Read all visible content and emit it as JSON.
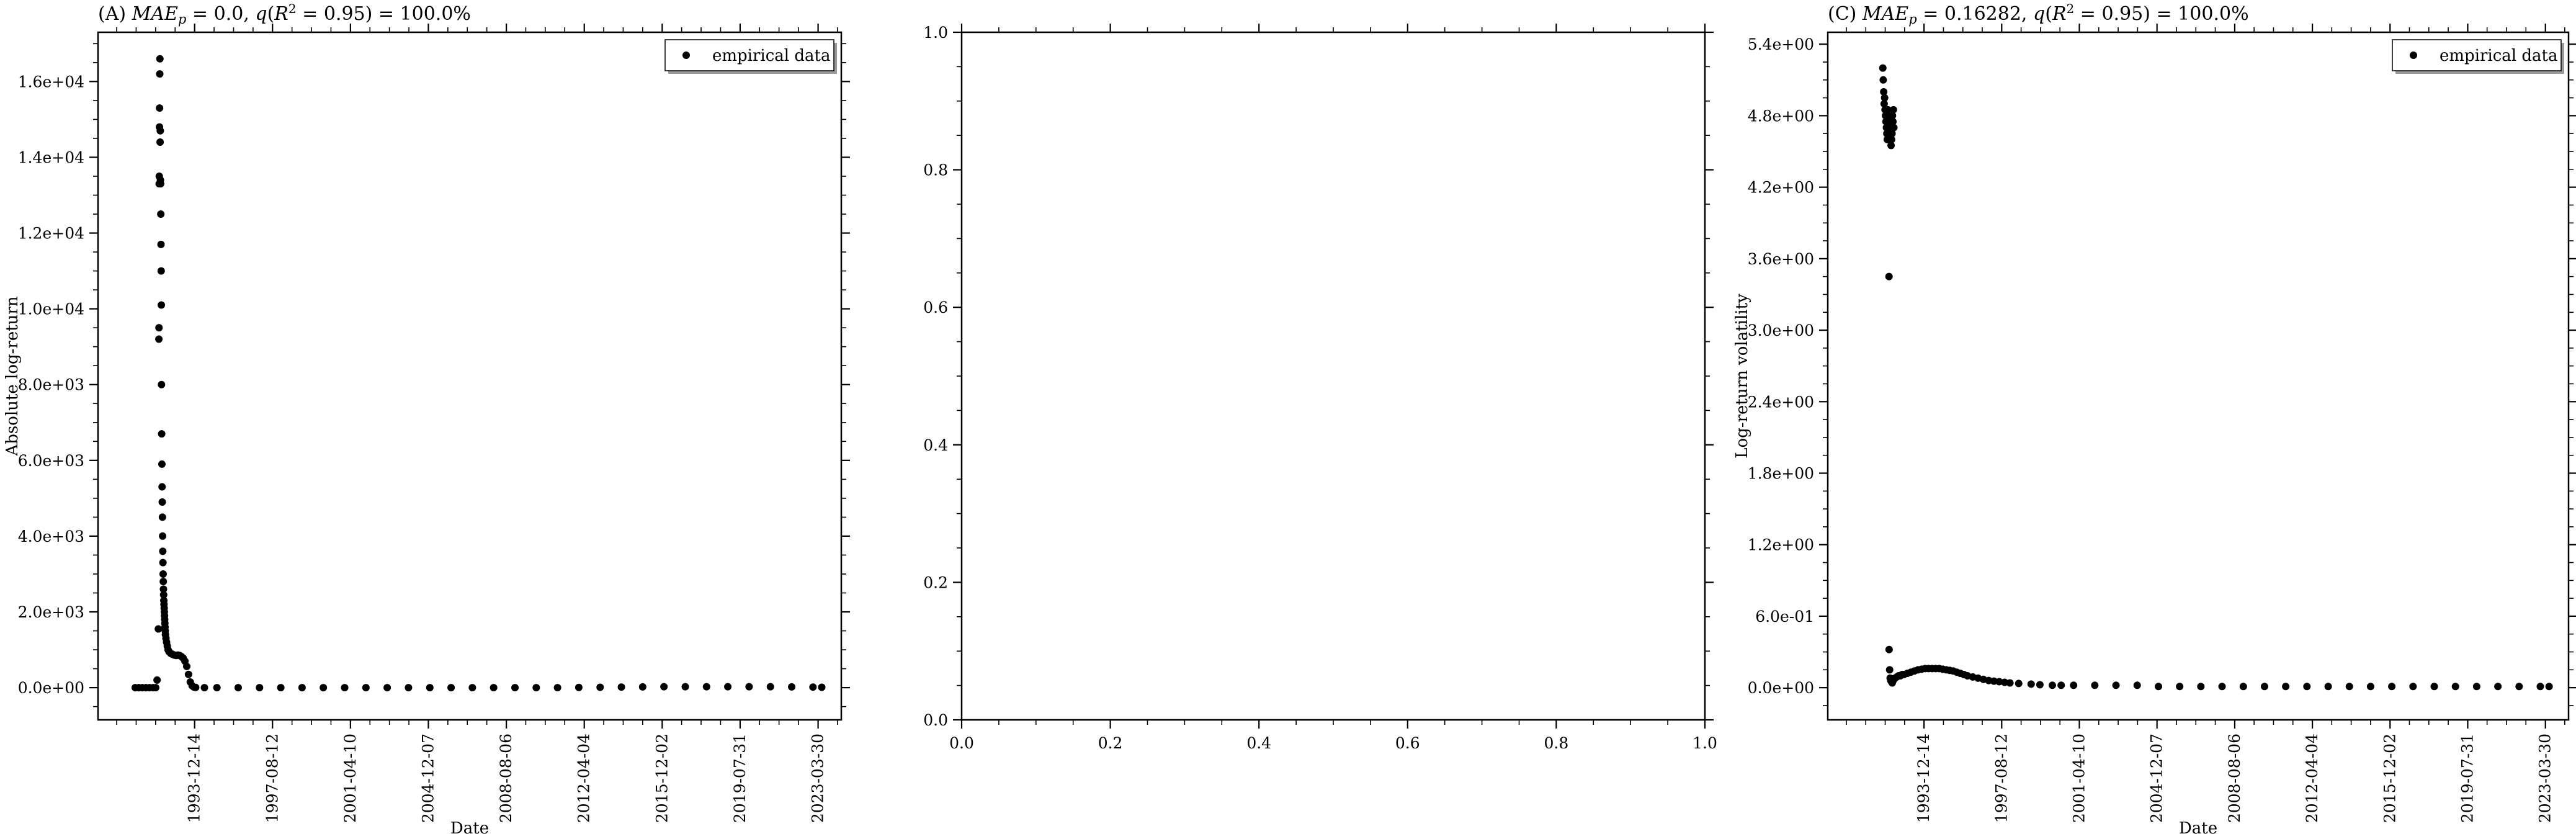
{
  "chart_data": [
    {
      "id": "A",
      "type": "scatter",
      "title": "(A) MAE_p = 0.0, q(R² = 0.95) = 100.0%",
      "title_parts": {
        "prefix": "(A) ",
        "mae": "MAE",
        "mae_sub": "p",
        "mae_value": " = 0.0, ",
        "q": "q",
        "r": "R",
        "r_sup": "2",
        "q_value": " = 0.95) = 100.0%"
      },
      "xlabel": "Date",
      "ylabel": "Absolute log-return",
      "xlim": [
        "1989-06-01",
        "2024-05-01"
      ],
      "ylim": [
        -850,
        17300
      ],
      "x_ticks": [
        "1993-12-14",
        "1997-08-12",
        "2001-04-10",
        "2004-12-07",
        "2008-08-06",
        "2012-04-04",
        "2015-12-02",
        "2019-07-31",
        "2023-03-30"
      ],
      "y_ticks": [
        0,
        2000,
        4000,
        6000,
        8000,
        10000,
        12000,
        14000,
        16000
      ],
      "y_tick_labels": [
        "0.0e+00",
        "2.0e+03",
        "4.0e+03",
        "6.0e+03",
        "8.0e+03",
        "1.0e+04",
        "1.2e+04",
        "1.4e+04",
        "1.6e+04"
      ],
      "legend": {
        "label": "empirical data",
        "position": "upper right"
      },
      "grid": false,
      "series": [
        {
          "name": "empirical data",
          "points": [
            [
              "1991-03-01",
              0
            ],
            [
              "1991-05-01",
              0
            ],
            [
              "1991-07-01",
              0
            ],
            [
              "1991-09-01",
              0
            ],
            [
              "1991-11-01",
              0
            ],
            [
              "1992-01-01",
              0
            ],
            [
              "1992-02-15",
              0
            ],
            [
              "1992-03-10",
              200
            ],
            [
              "1992-04-01",
              1550
            ],
            [
              "1992-04-10",
              9200
            ],
            [
              "1992-04-12",
              9500
            ],
            [
              "1992-04-15",
              13300
            ],
            [
              "1992-04-17",
              13500
            ],
            [
              "1992-04-20",
              14800
            ],
            [
              "1992-04-22",
              15300
            ],
            [
              "1992-04-25",
              16200
            ],
            [
              "1992-04-28",
              16600
            ],
            [
              "1992-05-01",
              14400
            ],
            [
              "1992-05-04",
              14700
            ],
            [
              "1992-05-07",
              13400
            ],
            [
              "1992-05-10",
              13300
            ],
            [
              "1992-05-13",
              12500
            ],
            [
              "1992-05-16",
              11700
            ],
            [
              "1992-05-19",
              11000
            ],
            [
              "1992-05-22",
              10100
            ],
            [
              "1992-05-25",
              8000
            ],
            [
              "1992-05-28",
              6700
            ],
            [
              "1992-06-01",
              5900
            ],
            [
              "1992-06-04",
              5300
            ],
            [
              "1992-06-07",
              4900
            ],
            [
              "1992-06-10",
              4500
            ],
            [
              "1992-06-13",
              4000
            ],
            [
              "1992-06-16",
              3600
            ],
            [
              "1992-06-19",
              3300
            ],
            [
              "1992-06-22",
              3000
            ],
            [
              "1992-06-25",
              2800
            ],
            [
              "1992-06-28",
              2600
            ],
            [
              "1992-07-01",
              2450
            ],
            [
              "1992-07-04",
              2300
            ],
            [
              "1992-07-07",
              2200
            ],
            [
              "1992-07-10",
              2100
            ],
            [
              "1992-07-13",
              2000
            ],
            [
              "1992-07-16",
              1900
            ],
            [
              "1992-07-19",
              1800
            ],
            [
              "1992-07-22",
              1700
            ],
            [
              "1992-07-25",
              1600
            ],
            [
              "1992-07-28",
              1500
            ],
            [
              "1992-08-01",
              1400
            ],
            [
              "1992-08-10",
              1300
            ],
            [
              "1992-08-20",
              1200
            ],
            [
              "1992-09-01",
              1100
            ],
            [
              "1992-09-15",
              1000
            ],
            [
              "1992-10-01",
              950
            ],
            [
              "1992-11-01",
              900
            ],
            [
              "1992-12-01",
              880
            ],
            [
              "1993-01-01",
              860
            ],
            [
              "1993-02-01",
              850
            ],
            [
              "1993-03-01",
              860
            ],
            [
              "1993-04-01",
              850
            ],
            [
              "1993-05-01",
              820
            ],
            [
              "1993-06-01",
              780
            ],
            [
              "1993-07-01",
              700
            ],
            [
              "1993-08-01",
              560
            ],
            [
              "1993-09-01",
              350
            ],
            [
              "1993-10-01",
              150
            ],
            [
              "1993-11-01",
              50
            ],
            [
              "1993-12-01",
              15
            ],
            [
              "1994-01-01",
              5
            ],
            [
              "1994-06-01",
              0
            ],
            [
              "1995-01-01",
              0
            ],
            [
              "1996-01-01",
              0
            ],
            [
              "1997-01-01",
              0
            ],
            [
              "1998-01-01",
              0
            ],
            [
              "1999-01-01",
              0
            ],
            [
              "2000-01-01",
              0
            ],
            [
              "2001-01-01",
              0
            ],
            [
              "2002-01-01",
              0
            ],
            [
              "2003-01-01",
              0
            ],
            [
              "2004-01-01",
              0
            ],
            [
              "2005-01-01",
              0
            ],
            [
              "2006-01-01",
              0
            ],
            [
              "2007-01-01",
              0
            ],
            [
              "2008-01-01",
              0
            ],
            [
              "2009-01-01",
              0
            ],
            [
              "2010-01-01",
              0
            ],
            [
              "2011-01-01",
              0
            ],
            [
              "2012-01-01",
              5
            ],
            [
              "2013-01-01",
              10
            ],
            [
              "2014-01-01",
              15
            ],
            [
              "2015-01-01",
              20
            ],
            [
              "2016-01-01",
              25
            ],
            [
              "2017-01-01",
              25
            ],
            [
              "2018-01-01",
              25
            ],
            [
              "2019-01-01",
              25
            ],
            [
              "2020-01-01",
              25
            ],
            [
              "2021-01-01",
              25
            ],
            [
              "2022-01-01",
              20
            ],
            [
              "2023-01-01",
              15
            ],
            [
              "2023-06-01",
              10
            ]
          ]
        }
      ]
    },
    {
      "id": "B",
      "type": "scatter",
      "title": "",
      "xlim": [
        0,
        1
      ],
      "ylim": [
        0,
        1
      ],
      "x_ticks": [
        0,
        0.2,
        0.4,
        0.6,
        0.8,
        1
      ],
      "x_tick_labels": [
        "0.0",
        "0.2",
        "0.4",
        "0.6",
        "0.8",
        "1.0"
      ],
      "y_ticks": [
        0,
        0.2,
        0.4,
        0.6,
        0.8,
        1
      ],
      "y_tick_labels": [
        "0.0",
        "0.2",
        "0.4",
        "0.6",
        "0.8",
        "1.0"
      ],
      "grid": false,
      "series": []
    },
    {
      "id": "C",
      "type": "scatter",
      "title": "(C) MAE_p = 0.16282, q(R² = 0.95) = 100.0%",
      "title_parts": {
        "prefix": "(C) ",
        "mae": "MAE",
        "mae_sub": "p",
        "mae_value": " = 0.16282, ",
        "q": "q",
        "r": "R",
        "r_sup": "2",
        "q_value": " = 0.95) = 100.0%"
      },
      "xlabel": "Date",
      "ylabel": "Log-return volatility",
      "xlim": [
        "1989-06-01",
        "2024-05-01"
      ],
      "ylim": [
        -0.27,
        5.5
      ],
      "x_ticks": [
        "1993-12-14",
        "1997-08-12",
        "2001-04-10",
        "2004-12-07",
        "2008-08-06",
        "2012-04-04",
        "2015-12-02",
        "2019-07-31",
        "2023-03-30"
      ],
      "y_ticks": [
        0,
        0.6,
        1.2,
        1.8,
        2.4,
        3.0,
        3.6,
        4.2,
        4.8,
        5.4
      ],
      "y_tick_labels": [
        "0.0e+00",
        "6.0e-01",
        "1.2e+00",
        "1.8e+00",
        "2.4e+00",
        "3.0e+00",
        "3.6e+00",
        "4.2e+00",
        "4.8e+00",
        "5.4e+00"
      ],
      "legend": {
        "label": "empirical data",
        "position": "upper right"
      },
      "grid": false,
      "series": [
        {
          "name": "empirical data",
          "points": [
            [
              "1992-01-05",
              5.2
            ],
            [
              "1992-01-12",
              5.1
            ],
            [
              "1992-01-20",
              5.0
            ],
            [
              "1992-01-28",
              4.9
            ],
            [
              "1992-02-05",
              4.95
            ],
            [
              "1992-02-12",
              4.85
            ],
            [
              "1992-02-20",
              4.8
            ],
            [
              "1992-02-28",
              4.75
            ],
            [
              "1992-03-07",
              4.7
            ],
            [
              "1992-03-14",
              4.65
            ],
            [
              "1992-03-22",
              4.6
            ],
            [
              "1992-03-30",
              4.85
            ],
            [
              "1992-04-08",
              4.8
            ],
            [
              "1992-04-16",
              4.75
            ],
            [
              "1992-04-24",
              4.7
            ],
            [
              "1992-05-02",
              4.65
            ],
            [
              "1992-05-10",
              4.6
            ],
            [
              "1992-05-18",
              4.7
            ],
            [
              "1992-05-26",
              4.55
            ],
            [
              "1992-06-03",
              4.6
            ],
            [
              "1992-06-11",
              4.65
            ],
            [
              "1992-06-19",
              4.8
            ],
            [
              "1992-06-27",
              4.75
            ],
            [
              "1992-07-05",
              4.85
            ],
            [
              "1992-07-13",
              4.7
            ],
            [
              "1992-04-20",
              3.45
            ],
            [
              "1992-04-22",
              0.32
            ],
            [
              "1992-05-01",
              0.15
            ],
            [
              "1992-05-10",
              0.08
            ],
            [
              "1992-05-20",
              0.06
            ],
            [
              "1992-06-01",
              0.05
            ],
            [
              "1992-06-15",
              0.04
            ],
            [
              "1992-07-01",
              0.06
            ],
            [
              "1992-08-01",
              0.08
            ],
            [
              "1992-09-01",
              0.09
            ],
            [
              "1992-10-01",
              0.1
            ],
            [
              "1992-11-01",
              0.1
            ],
            [
              "1992-12-01",
              0.11
            ],
            [
              "1993-01-01",
              0.11
            ],
            [
              "1993-03-01",
              0.12
            ],
            [
              "1993-05-01",
              0.13
            ],
            [
              "1993-07-01",
              0.14
            ],
            [
              "1993-09-01",
              0.15
            ],
            [
              "1993-11-01",
              0.155
            ],
            [
              "1994-01-01",
              0.16
            ],
            [
              "1994-03-01",
              0.16
            ],
            [
              "1994-05-01",
              0.16
            ],
            [
              "1994-07-01",
              0.16
            ],
            [
              "1994-09-01",
              0.16
            ],
            [
              "1994-11-01",
              0.155
            ],
            [
              "1995-01-01",
              0.15
            ],
            [
              "1995-03-01",
              0.145
            ],
            [
              "1995-05-01",
              0.14
            ],
            [
              "1995-07-01",
              0.13
            ],
            [
              "1995-09-01",
              0.12
            ],
            [
              "1995-11-01",
              0.11
            ],
            [
              "1996-01-01",
              0.1
            ],
            [
              "1996-04-01",
              0.09
            ],
            [
              "1996-07-01",
              0.08
            ],
            [
              "1996-10-01",
              0.07
            ],
            [
              "1997-01-01",
              0.06
            ],
            [
              "1997-04-01",
              0.055
            ],
            [
              "1997-07-01",
              0.05
            ],
            [
              "1997-10-01",
              0.045
            ],
            [
              "1998-01-01",
              0.04
            ],
            [
              "1998-06-01",
              0.035
            ],
            [
              "1999-01-01",
              0.03
            ],
            [
              "1999-06-01",
              0.025
            ],
            [
              "2000-01-01",
              0.02
            ],
            [
              "2000-06-01",
              0.02
            ],
            [
              "2001-01-01",
              0.02
            ],
            [
              "2002-01-01",
              0.02
            ],
            [
              "2003-01-01",
              0.02
            ],
            [
              "2004-01-01",
              0.02
            ],
            [
              "2005-01-01",
              0.01
            ],
            [
              "2006-01-01",
              0.01
            ],
            [
              "2007-01-01",
              0.01
            ],
            [
              "2008-01-01",
              0.01
            ],
            [
              "2009-01-01",
              0.01
            ],
            [
              "2010-01-01",
              0.01
            ],
            [
              "2011-01-01",
              0.01
            ],
            [
              "2012-01-01",
              0.01
            ],
            [
              "2013-01-01",
              0.01
            ],
            [
              "2014-01-01",
              0.01
            ],
            [
              "2015-01-01",
              0.01
            ],
            [
              "2016-01-01",
              0.01
            ],
            [
              "2017-01-01",
              0.01
            ],
            [
              "2018-01-01",
              0.01
            ],
            [
              "2019-01-01",
              0.01
            ],
            [
              "2020-01-01",
              0.01
            ],
            [
              "2021-01-01",
              0.01
            ],
            [
              "2022-01-01",
              0.01
            ],
            [
              "2023-01-01",
              0.01
            ],
            [
              "2023-06-01",
              0.01
            ]
          ]
        }
      ]
    }
  ]
}
